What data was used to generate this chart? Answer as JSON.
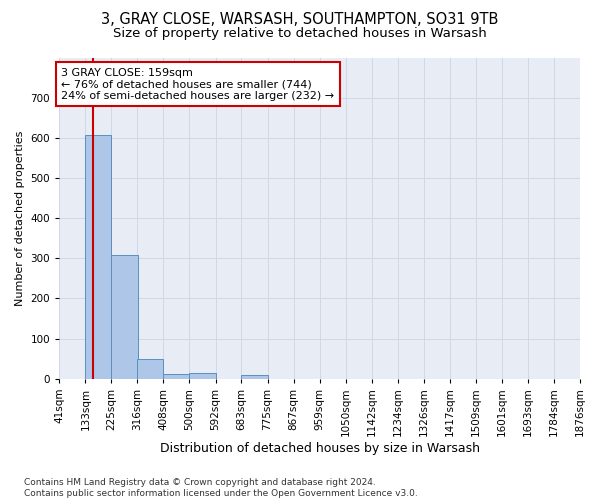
{
  "title1": "3, GRAY CLOSE, WARSASH, SOUTHAMPTON, SO31 9TB",
  "title2": "Size of property relative to detached houses in Warsash",
  "xlabel": "Distribution of detached houses by size in Warsash",
  "ylabel": "Number of detached properties",
  "bar_color": "#aec6e8",
  "bar_edge_color": "#5a8fc0",
  "bin_edges": [
    41,
    133,
    225,
    316,
    408,
    500,
    592,
    683,
    775,
    867,
    959,
    1050,
    1142,
    1234,
    1326,
    1417,
    1509,
    1601,
    1693,
    1784,
    1876
  ],
  "bar_heights": [
    0,
    608,
    308,
    48,
    12,
    13,
    0,
    8,
    0,
    0,
    0,
    0,
    0,
    0,
    0,
    0,
    0,
    0,
    0,
    0
  ],
  "property_size": 159,
  "vline_color": "#cc0000",
  "annotation_text": "3 GRAY CLOSE: 159sqm\n← 76% of detached houses are smaller (744)\n24% of semi-detached houses are larger (232) →",
  "annotation_box_color": "#cc0000",
  "annotation_box_facecolor": "white",
  "ylim": [
    0,
    800
  ],
  "yticks": [
    0,
    100,
    200,
    300,
    400,
    500,
    600,
    700,
    800
  ],
  "grid_color": "#d0d8e8",
  "background_color": "#e8edf5",
  "footer": "Contains HM Land Registry data © Crown copyright and database right 2024.\nContains public sector information licensed under the Open Government Licence v3.0.",
  "title1_fontsize": 10.5,
  "title2_fontsize": 9.5,
  "xlabel_fontsize": 9,
  "ylabel_fontsize": 8,
  "tick_fontsize": 7.5,
  "footer_fontsize": 6.5,
  "annotation_fontsize": 8
}
